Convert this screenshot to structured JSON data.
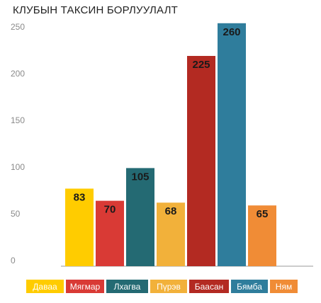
{
  "chart_data": {
    "type": "bar",
    "title": "КЛУБЫН ТАКСИН БОРЛУУЛАЛТ",
    "categories": [
      "Даваа",
      "Мягмар",
      "Лхагва",
      "Пүрэв",
      "Баасан",
      "Бямба",
      "Ням"
    ],
    "values": [
      83,
      70,
      105,
      68,
      225,
      260,
      65
    ],
    "colors": [
      "#ffcc00",
      "#d93a35",
      "#246a73",
      "#f2b13a",
      "#b32a22",
      "#2f7d9c",
      "#f08c36"
    ],
    "yticks": [
      0,
      50,
      100,
      150,
      200,
      250
    ],
    "ylim": [
      0,
      265
    ],
    "grid": false,
    "legend_position": "bottom",
    "data_labels": true
  }
}
